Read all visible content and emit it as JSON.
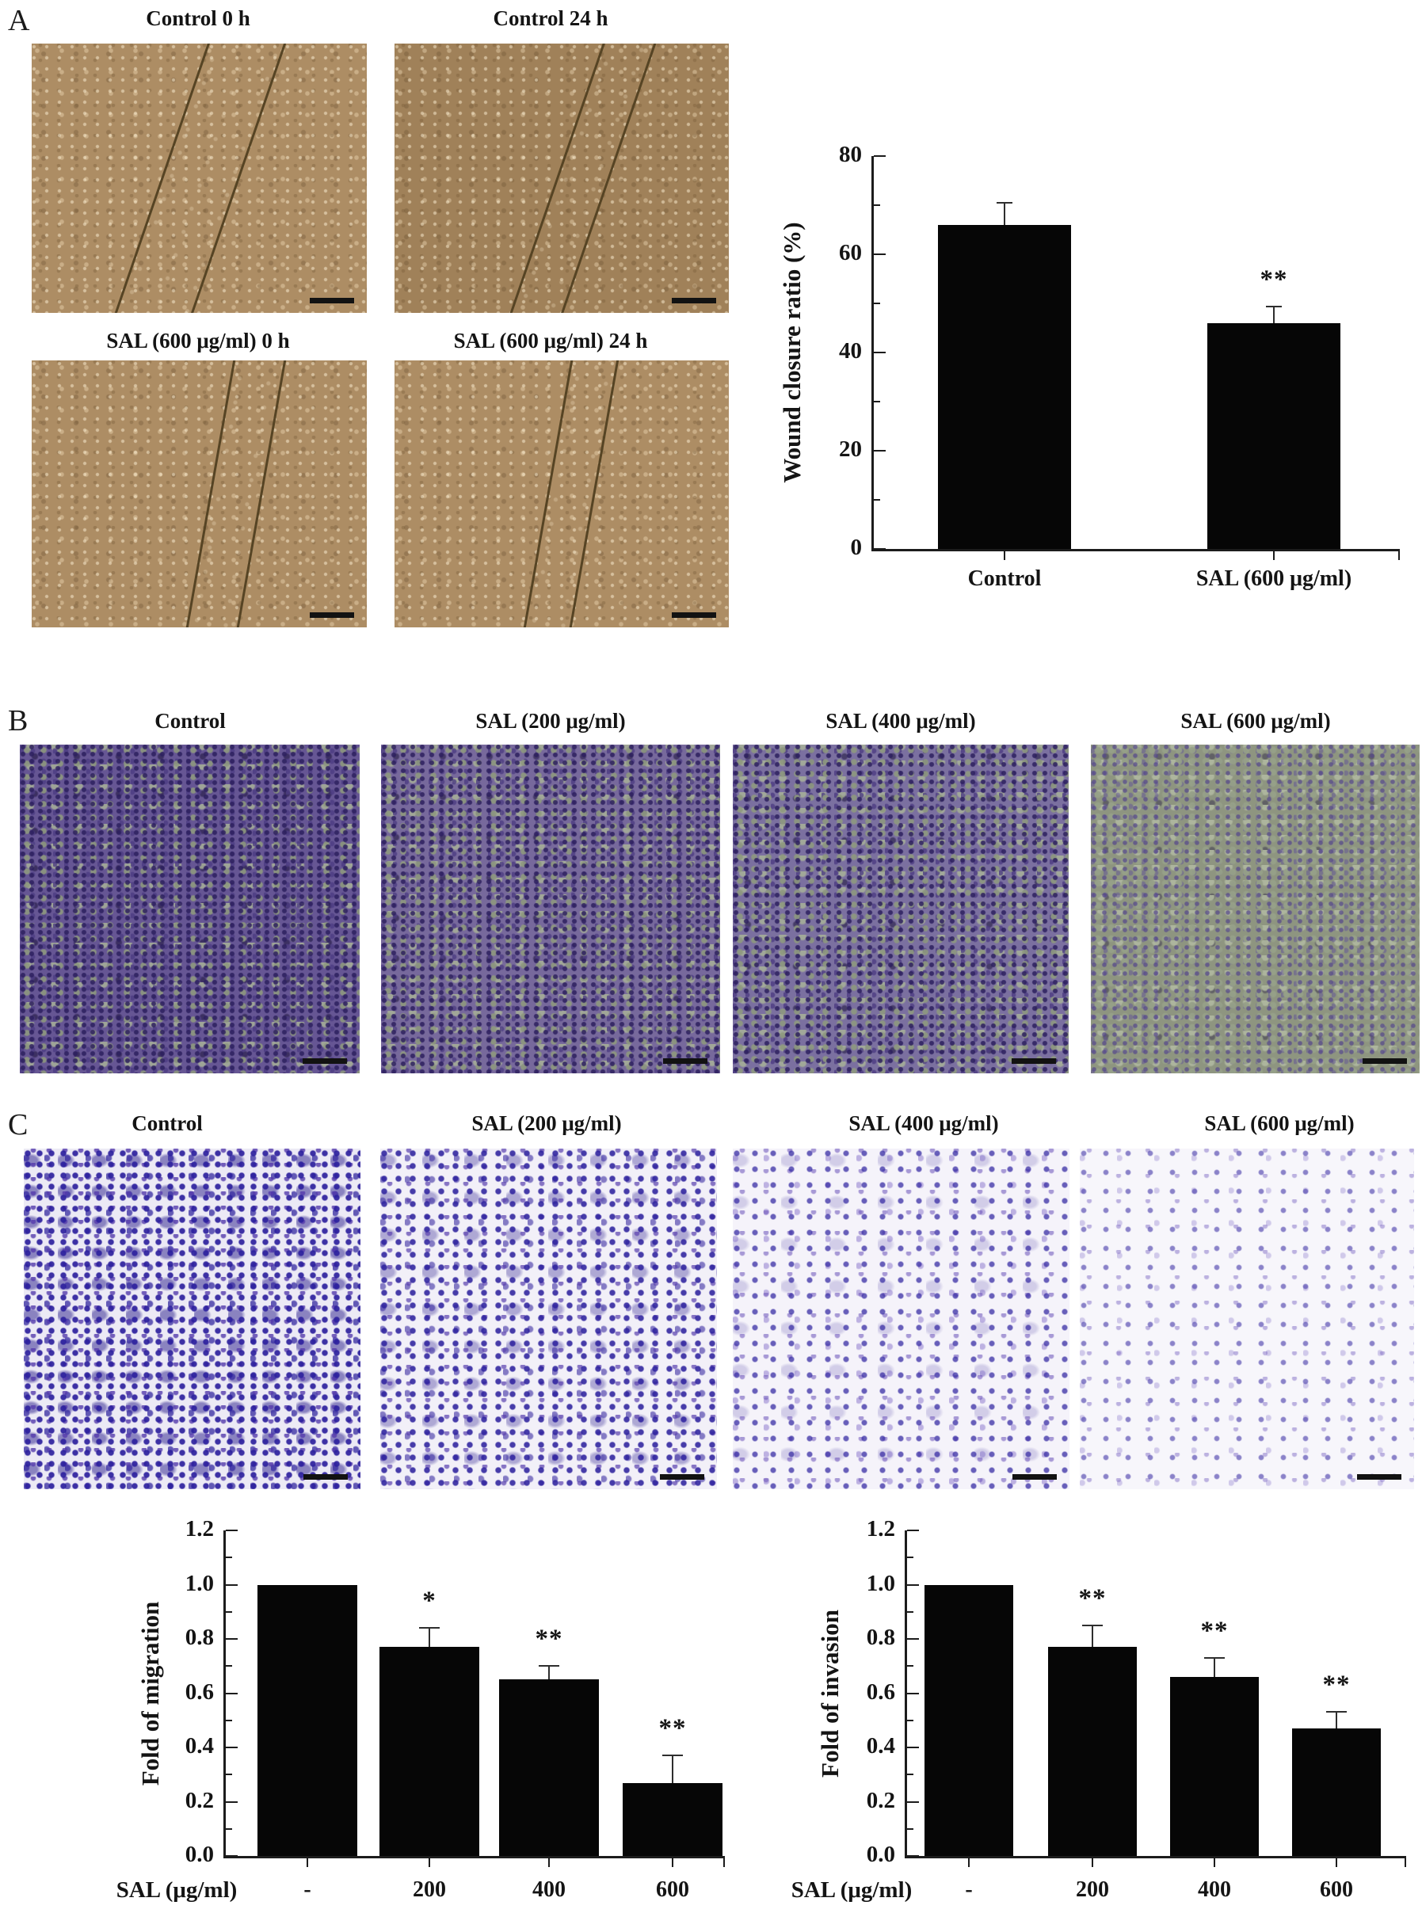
{
  "figure": {
    "panels": {
      "A": {
        "label": "A",
        "image_titles": [
          "Control 0 h",
          "Control 24 h",
          "SAL (600 μg/ml) 0 h",
          "SAL (600 μg/ml) 24 h"
        ]
      },
      "B": {
        "label": "B",
        "image_titles": [
          "Control",
          "SAL (200 μg/ml)",
          "SAL (400 μg/ml)",
          "SAL (600 μg/ml)"
        ]
      },
      "C": {
        "label": "C",
        "image_titles": [
          "Control",
          "SAL (200 μg/ml)",
          "SAL (400 μg/ml)",
          "SAL (600 μg/ml)"
        ]
      }
    },
    "colors": {
      "bar_fill": "#060606",
      "axis": "#1c1c1c",
      "background": "#ffffff"
    }
  },
  "chart_data": [
    {
      "id": "wound_closure",
      "type": "bar",
      "title": "",
      "categories": [
        "Control",
        "SAL (600 μg/ml)"
      ],
      "values": [
        66,
        46
      ],
      "errors": [
        4.5,
        3.3
      ],
      "significance": [
        "",
        "**"
      ],
      "ylabel": "Wound closure ratio (%)",
      "xlabel": "",
      "ylim": [
        0,
        80
      ],
      "ytick_step": 20,
      "ytick_minor_step": 10,
      "tick_decimals": 0,
      "grid": false,
      "legend": null
    },
    {
      "id": "fold_of_migration",
      "type": "bar",
      "title": "",
      "categories": [
        "-",
        "200",
        "400",
        "600"
      ],
      "values": [
        1.0,
        0.77,
        0.65,
        0.27
      ],
      "errors": [
        0,
        0.07,
        0.05,
        0.1
      ],
      "significance": [
        "",
        "*",
        "**",
        "**"
      ],
      "ylabel": "Fold of migration",
      "xlabel": "SAL (μg/ml)",
      "ylim": [
        0,
        1.2
      ],
      "ytick_step": 0.2,
      "ytick_minor_step": 0.1,
      "tick_decimals": 1,
      "grid": false,
      "legend": null
    },
    {
      "id": "fold_of_invasion",
      "type": "bar",
      "title": "",
      "categories": [
        "-",
        "200",
        "400",
        "600"
      ],
      "values": [
        1.0,
        0.77,
        0.66,
        0.47
      ],
      "errors": [
        0,
        0.08,
        0.07,
        0.06
      ],
      "significance": [
        "",
        "**",
        "**",
        "**"
      ],
      "ylabel": "Fold of invasion",
      "xlabel": "SAL (μg/ml)",
      "ylim": [
        0,
        1.2
      ],
      "ytick_step": 0.2,
      "ytick_minor_step": 0.1,
      "tick_decimals": 1,
      "grid": false,
      "legend": null
    }
  ]
}
